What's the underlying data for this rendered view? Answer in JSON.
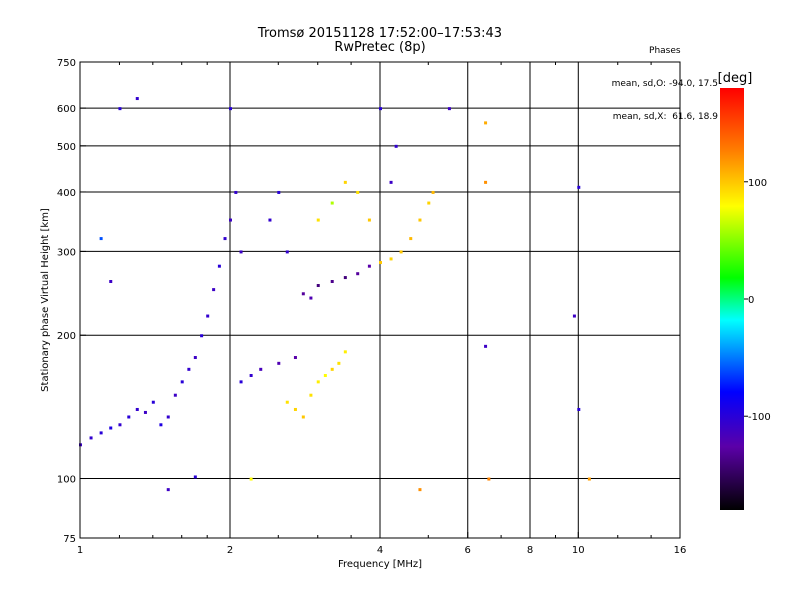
{
  "header": {
    "title_line1": "Tromsø 20151128 17:52:00–17:53:43",
    "title_line2": "RwPretec (8p)"
  },
  "phases_box": {
    "title": "Phases",
    "line1": "mean, sd,O: -94.0, 17.5",
    "line2": "mean, sd,X:  61.6, 18.9"
  },
  "colorbar": {
    "unit_label": "[deg]",
    "range": [
      -180,
      180
    ],
    "ticks": [
      {
        "value": 100,
        "label": "100"
      },
      {
        "value": 0,
        "label": "0"
      },
      {
        "value": -100,
        "label": "-100"
      }
    ]
  },
  "chart_data": {
    "type": "scatter",
    "xlabel": "Frequency [MHz]",
    "ylabel": "Stationary phase Virtual Height [km]",
    "xscale": "log",
    "yscale": "log",
    "xlim": [
      1,
      16
    ],
    "ylim": [
      75,
      750
    ],
    "grid": true,
    "x_ticks": [
      {
        "value": 1,
        "label": "1",
        "grid": false
      },
      {
        "value": 2,
        "label": "2",
        "grid": true
      },
      {
        "value": 4,
        "label": "4",
        "grid": true
      },
      {
        "value": 6,
        "label": "6",
        "grid": true
      },
      {
        "value": 8,
        "label": "8",
        "grid": true
      },
      {
        "value": 10,
        "label": "10",
        "grid": true
      },
      {
        "value": 16,
        "label": "16",
        "grid": false
      }
    ],
    "y_ticks": [
      {
        "value": 75,
        "label": "75",
        "grid": false
      },
      {
        "value": 100,
        "label": "100",
        "grid": true
      },
      {
        "value": 200,
        "label": "200",
        "grid": true
      },
      {
        "value": 300,
        "label": "300",
        "grid": true
      },
      {
        "value": 400,
        "label": "400",
        "grid": true
      },
      {
        "value": 500,
        "label": "500",
        "grid": true
      },
      {
        "value": 600,
        "label": "600",
        "grid": true
      },
      {
        "value": 750,
        "label": "750",
        "grid": false
      }
    ],
    "points": [
      {
        "x": 1.0,
        "y": 118,
        "c": -110
      },
      {
        "x": 1.05,
        "y": 122,
        "c": -105
      },
      {
        "x": 1.1,
        "y": 125,
        "c": -100
      },
      {
        "x": 1.15,
        "y": 128,
        "c": -95
      },
      {
        "x": 1.2,
        "y": 130,
        "c": -105
      },
      {
        "x": 1.25,
        "y": 135,
        "c": -100
      },
      {
        "x": 1.3,
        "y": 140,
        "c": -105
      },
      {
        "x": 1.35,
        "y": 138,
        "c": -110
      },
      {
        "x": 1.4,
        "y": 145,
        "c": -100
      },
      {
        "x": 1.45,
        "y": 130,
        "c": -95
      },
      {
        "x": 1.5,
        "y": 135,
        "c": -105
      },
      {
        "x": 1.55,
        "y": 150,
        "c": -110
      },
      {
        "x": 1.6,
        "y": 160,
        "c": -100
      },
      {
        "x": 1.65,
        "y": 170,
        "c": -105
      },
      {
        "x": 1.7,
        "y": 180,
        "c": -110
      },
      {
        "x": 1.75,
        "y": 200,
        "c": -100
      },
      {
        "x": 1.8,
        "y": 220,
        "c": -105
      },
      {
        "x": 1.85,
        "y": 250,
        "c": -110
      },
      {
        "x": 1.9,
        "y": 280,
        "c": -100
      },
      {
        "x": 1.95,
        "y": 320,
        "c": -105
      },
      {
        "x": 2.0,
        "y": 350,
        "c": -110
      },
      {
        "x": 2.0,
        "y": 600,
        "c": -100
      },
      {
        "x": 2.05,
        "y": 400,
        "c": -105
      },
      {
        "x": 2.1,
        "y": 300,
        "c": -110
      },
      {
        "x": 2.1,
        "y": 160,
        "c": -100
      },
      {
        "x": 2.2,
        "y": 165,
        "c": -105
      },
      {
        "x": 2.3,
        "y": 170,
        "c": -115
      },
      {
        "x": 2.4,
        "y": 350,
        "c": -105
      },
      {
        "x": 2.5,
        "y": 400,
        "c": -100
      },
      {
        "x": 2.5,
        "y": 175,
        "c": -120
      },
      {
        "x": 2.6,
        "y": 300,
        "c": -105
      },
      {
        "x": 2.7,
        "y": 180,
        "c": -125
      },
      {
        "x": 2.8,
        "y": 245,
        "c": -130
      },
      {
        "x": 2.9,
        "y": 240,
        "c": -120
      },
      {
        "x": 2.6,
        "y": 145,
        "c": 90
      },
      {
        "x": 2.7,
        "y": 140,
        "c": 95
      },
      {
        "x": 2.8,
        "y": 135,
        "c": 100
      },
      {
        "x": 2.9,
        "y": 150,
        "c": 90
      },
      {
        "x": 3.0,
        "y": 160,
        "c": 85
      },
      {
        "x": 3.1,
        "y": 165,
        "c": 80
      },
      {
        "x": 3.2,
        "y": 170,
        "c": 95
      },
      {
        "x": 3.3,
        "y": 175,
        "c": 90
      },
      {
        "x": 3.4,
        "y": 185,
        "c": 85
      },
      {
        "x": 3.0,
        "y": 255,
        "c": -140
      },
      {
        "x": 3.2,
        "y": 260,
        "c": -135
      },
      {
        "x": 3.4,
        "y": 265,
        "c": -140
      },
      {
        "x": 3.6,
        "y": 270,
        "c": -130
      },
      {
        "x": 3.8,
        "y": 280,
        "c": -125
      },
      {
        "x": 4.0,
        "y": 285,
        "c": 100
      },
      {
        "x": 4.2,
        "y": 290,
        "c": 95
      },
      {
        "x": 4.4,
        "y": 300,
        "c": 100
      },
      {
        "x": 4.6,
        "y": 320,
        "c": 105
      },
      {
        "x": 4.8,
        "y": 350,
        "c": 100
      },
      {
        "x": 5.0,
        "y": 380,
        "c": 95
      },
      {
        "x": 5.1,
        "y": 400,
        "c": 105
      },
      {
        "x": 3.0,
        "y": 350,
        "c": 90
      },
      {
        "x": 3.2,
        "y": 380,
        "c": 60
      },
      {
        "x": 3.4,
        "y": 420,
        "c": 95
      },
      {
        "x": 3.6,
        "y": 400,
        "c": 90
      },
      {
        "x": 3.8,
        "y": 350,
        "c": 100
      },
      {
        "x": 4.2,
        "y": 420,
        "c": -110
      },
      {
        "x": 4.3,
        "y": 500,
        "c": -105
      },
      {
        "x": 4.0,
        "y": 600,
        "c": -100
      },
      {
        "x": 5.5,
        "y": 600,
        "c": -110
      },
      {
        "x": 6.5,
        "y": 560,
        "c": 110
      },
      {
        "x": 6.5,
        "y": 420,
        "c": 120
      },
      {
        "x": 6.5,
        "y": 190,
        "c": -110
      },
      {
        "x": 6.6,
        "y": 100,
        "c": 125
      },
      {
        "x": 9.8,
        "y": 220,
        "c": -110
      },
      {
        "x": 10.0,
        "y": 410,
        "c": -100
      },
      {
        "x": 10.0,
        "y": 140,
        "c": -100
      },
      {
        "x": 10.5,
        "y": 100,
        "c": 115
      },
      {
        "x": 1.2,
        "y": 600,
        "c": -100
      },
      {
        "x": 1.3,
        "y": 630,
        "c": -105
      },
      {
        "x": 1.1,
        "y": 320,
        "c": -60
      },
      {
        "x": 1.15,
        "y": 260,
        "c": -110
      },
      {
        "x": 1.5,
        "y": 95,
        "c": -110
      },
      {
        "x": 1.7,
        "y": 101,
        "c": -100
      },
      {
        "x": 2.2,
        "y": 100,
        "c": 80
      },
      {
        "x": 4.8,
        "y": 95,
        "c": 120
      }
    ]
  }
}
